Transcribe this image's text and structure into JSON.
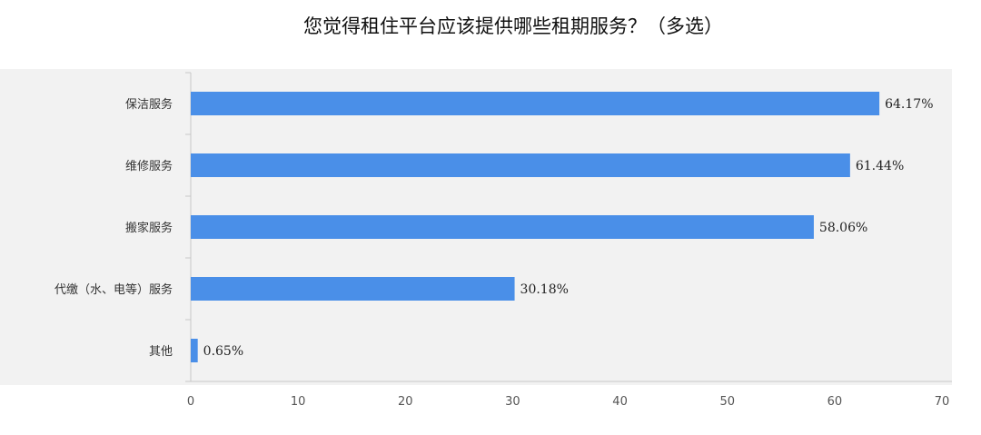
{
  "chart_data": {
    "type": "bar",
    "orientation": "horizontal",
    "title": "您觉得租住平台应该提供哪些租期服务？（多选）",
    "categories": [
      "保洁服务",
      "维修服务",
      "搬家服务",
      "代缴（水、电等）服务",
      "其他"
    ],
    "values": [
      64.17,
      61.44,
      58.06,
      30.18,
      0.65
    ],
    "value_labels": [
      "64.17%",
      "61.44%",
      "58.06%",
      "30.18%",
      "0.65%"
    ],
    "xlim": [
      0,
      70
    ],
    "xticks": [
      0,
      10,
      20,
      30,
      40,
      50,
      60,
      70
    ],
    "xtick_labels": [
      "0",
      "10",
      "20",
      "30",
      "40",
      "50",
      "60",
      "70"
    ],
    "bar_color": "#4a8fe8",
    "plot_background": "#f2f2f2",
    "grid": false,
    "legend": "none"
  }
}
